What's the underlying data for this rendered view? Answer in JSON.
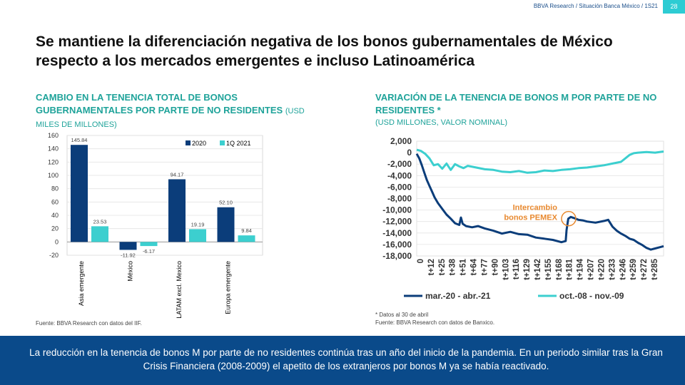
{
  "header": {
    "source": "BBVA Research / Situación Banca México / 1S21",
    "page_number": "28"
  },
  "title": "Se mantiene la diferenciación negativa de los bonos gubernamentales de México respecto a los mercados emergentes e incluso Latinoamérica",
  "left_chart": {
    "title": "CAMBIO EN LA TENENCIA TOTAL DE BONOS GUBERNAMENTALES POR PARTE DE NO RESIDENTES",
    "unit": "(USD MILES DE MILLONES)",
    "source": "Fuente: BBVA Research con datos del IIF."
  },
  "right_chart": {
    "title": "VARIACIÓN DE LA TENENCIA DE BONOS M POR PARTE DE NO RESIDENTES *",
    "unit": "(USD MILLONES, VALOR NOMINAL)",
    "note": "* Datos al 30 de abril",
    "source": "Fuente: BBVA Research con datos de Banxico."
  },
  "footer": {
    "text": "La reducción en la tenencia de bonos M por parte de no residentes continúa tras un año del inicio de la pandemia. En un periodo similar tras la Gran Crisis Financiera (2008-2009) el apetito de los extranjeros por bonos M ya se había reactivado."
  },
  "colors": {
    "dark": "#0b3d7a",
    "light": "#3ccfcf",
    "accent": "#e8892f",
    "title_teal": "#1fa39a"
  },
  "chart_data": [
    {
      "type": "bar",
      "categories": [
        "Asia emergente",
        "México",
        "LATAM excl. Mexico",
        "Europa emergente"
      ],
      "series": [
        {
          "name": "2020",
          "values": [
            145.84,
            -11.92,
            94.17,
            52.1
          ],
          "labels": [
            "145.84",
            "-11.92",
            "94.17",
            "52.10"
          ]
        },
        {
          "name": "1Q 2021",
          "values": [
            23.53,
            -6.17,
            19.19,
            9.84
          ],
          "labels": [
            "23.53",
            "-6.17",
            "19.19",
            "9.84"
          ]
        }
      ],
      "ylim": [
        -20,
        160
      ],
      "yticks": [
        -20,
        0,
        20,
        40,
        60,
        80,
        100,
        120,
        140,
        160
      ],
      "legend": "top-right",
      "grid": true
    },
    {
      "type": "line",
      "x_ticks": [
        "0",
        "t+12",
        "t+25",
        "t+38",
        "t+51",
        "t+64",
        "t+77",
        "t+90",
        "t+103",
        "t+116",
        "t+129",
        "t+142",
        "t+155",
        "t+168",
        "t+181",
        "t+194",
        "t+207",
        "t+220",
        "t+233",
        "t+246",
        "t+259",
        "t+272",
        "t+285"
      ],
      "ylim": [
        -18000,
        2000
      ],
      "yticks": [
        2000,
        0,
        -2000,
        -4000,
        -6000,
        -8000,
        -10000,
        -12000,
        -14000,
        -16000,
        -18000
      ],
      "ytick_labels": [
        "2,000",
        "0",
        "-2,000",
        "-4,000",
        "-6,000",
        "-8,000",
        "-10,000",
        "-12,000",
        "-14,000",
        "-16,000",
        "-18,000"
      ],
      "series": [
        {
          "name": "mar.-20 - abr.-21",
          "x": [
            0,
            3,
            6,
            9,
            12,
            15,
            18,
            21,
            25,
            30,
            35,
            40,
            45,
            50,
            52,
            54,
            58,
            65,
            72,
            80,
            90,
            100,
            110,
            120,
            130,
            140,
            150,
            160,
            170,
            175,
            176,
            178,
            181,
            185,
            190,
            195,
            200,
            210,
            220,
            225,
            230,
            235,
            240,
            245,
            250,
            255,
            260,
            265,
            270,
            275,
            280,
            285,
            290
          ],
          "y": [
            -200,
            -1000,
            -2200,
            -3500,
            -4800,
            -5800,
            -6800,
            -7800,
            -8800,
            -9800,
            -10800,
            -11500,
            -12300,
            -12600,
            -11300,
            -12400,
            -12800,
            -13000,
            -12800,
            -13200,
            -13600,
            -14100,
            -13800,
            -14200,
            -14300,
            -14800,
            -15000,
            -15200,
            -15600,
            -15400,
            -13500,
            -11500,
            -11200,
            -11400,
            -11700,
            -11800,
            -12000,
            -12200,
            -11900,
            -11700,
            -12900,
            -13600,
            -14100,
            -14500,
            -15000,
            -15200,
            -15700,
            -16100,
            -16600,
            -16900,
            -16700,
            -16500,
            -16300
          ]
        },
        {
          "name": "oct.-08 - nov.-09",
          "x": [
            0,
            5,
            10,
            15,
            20,
            25,
            30,
            35,
            40,
            45,
            50,
            55,
            60,
            70,
            80,
            90,
            100,
            110,
            120,
            130,
            140,
            150,
            160,
            170,
            180,
            190,
            200,
            210,
            220,
            230,
            240,
            245,
            250,
            255,
            260,
            270,
            280,
            290
          ],
          "y": [
            500,
            300,
            -200,
            -1000,
            -2200,
            -2000,
            -2800,
            -1900,
            -3000,
            -2000,
            -2400,
            -2700,
            -2300,
            -2600,
            -2900,
            -3000,
            -3300,
            -3400,
            -3200,
            -3500,
            -3400,
            -3100,
            -3200,
            -3000,
            -2900,
            -2700,
            -2600,
            -2400,
            -2200,
            -1900,
            -1600,
            -1000,
            -400,
            -100,
            0,
            100,
            0,
            200
          ]
        }
      ],
      "annotation": {
        "text_line1": "Intercambio",
        "text_line2": "bonos PEMEX",
        "x": 181,
        "y": -11500
      },
      "legend": "bottom",
      "grid": true
    }
  ]
}
